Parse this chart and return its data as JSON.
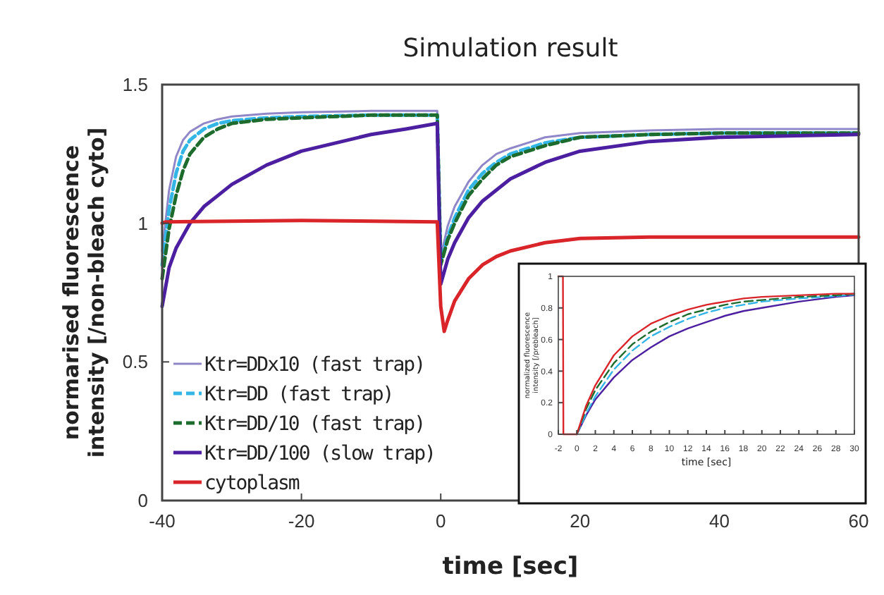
{
  "chart_data": [
    {
      "type": "line",
      "title": "Simulation result",
      "xlabel": "time [sec]",
      "ylabel": "normarised fluorescence intensity [/non-bleach cyto]",
      "xlim": [
        -40,
        60
      ],
      "ylim": [
        0,
        1.5
      ],
      "xticks": [
        -40,
        -20,
        0,
        20,
        40,
        60
      ],
      "yticks": [
        0,
        0.5,
        1,
        1.5
      ],
      "grid": false,
      "legend": "bottom left",
      "series": [
        {
          "name": "Ktr=DDx10 (fast trap)",
          "color": "#8f87c8",
          "line_style": "solid",
          "x": [
            -40,
            -39,
            -38,
            -37,
            -36,
            -34,
            -32,
            -30,
            -25,
            -20,
            -10,
            -0.5,
            0,
            1,
            2,
            4,
            6,
            8,
            10,
            15,
            20,
            30,
            40,
            60
          ],
          "values": [
            0.9,
            1.12,
            1.24,
            1.3,
            1.33,
            1.36,
            1.375,
            1.385,
            1.395,
            1.4,
            1.405,
            1.405,
            0.88,
            0.99,
            1.06,
            1.15,
            1.21,
            1.25,
            1.27,
            1.31,
            1.325,
            1.335,
            1.34,
            1.34
          ]
        },
        {
          "name": "Ktr=DD (fast trap)",
          "color": "#33b5e5",
          "line_style": "dashed",
          "x": [
            -40,
            -39,
            -38,
            -37,
            -36,
            -34,
            -32,
            -30,
            -25,
            -20,
            -10,
            -0.5,
            0,
            1,
            2,
            4,
            6,
            8,
            10,
            15,
            20,
            30,
            40,
            60
          ],
          "values": [
            0.85,
            1.05,
            1.18,
            1.26,
            1.3,
            1.34,
            1.36,
            1.37,
            1.38,
            1.385,
            1.39,
            1.39,
            0.86,
            0.95,
            1.02,
            1.12,
            1.18,
            1.22,
            1.25,
            1.29,
            1.31,
            1.32,
            1.325,
            1.325
          ]
        },
        {
          "name": "Ktr=DD/10 (fast trap)",
          "color": "#1e6b2e",
          "line_style": "dashed",
          "x": [
            -40,
            -39,
            -38,
            -37,
            -36,
            -34,
            -32,
            -30,
            -25,
            -20,
            -10,
            -0.5,
            0,
            1,
            2,
            4,
            6,
            8,
            10,
            15,
            20,
            30,
            40,
            60
          ],
          "values": [
            0.8,
            0.98,
            1.1,
            1.19,
            1.25,
            1.31,
            1.34,
            1.36,
            1.375,
            1.38,
            1.39,
            1.39,
            0.85,
            0.94,
            1.0,
            1.1,
            1.16,
            1.21,
            1.24,
            1.28,
            1.31,
            1.32,
            1.325,
            1.325
          ]
        },
        {
          "name": "Ktr=DD/100 (slow trap)",
          "color": "#4b1fa0",
          "line_style": "solid",
          "x": [
            -40,
            -39,
            -38,
            -36,
            -34,
            -32,
            -30,
            -25,
            -20,
            -15,
            -10,
            -5,
            -0.5,
            0,
            1,
            2,
            4,
            6,
            8,
            10,
            15,
            20,
            30,
            40,
            60
          ],
          "values": [
            0.7,
            0.84,
            0.91,
            1.0,
            1.06,
            1.1,
            1.14,
            1.21,
            1.26,
            1.29,
            1.32,
            1.34,
            1.36,
            0.78,
            0.87,
            0.93,
            1.02,
            1.08,
            1.12,
            1.16,
            1.22,
            1.26,
            1.295,
            1.31,
            1.32
          ]
        },
        {
          "name": "cytoplasm",
          "color": "#d9252a",
          "line_style": "solid",
          "x": [
            -40,
            -39.5,
            -20,
            -0.5,
            0,
            0.5,
            1,
            2,
            4,
            6,
            8,
            10,
            15,
            20,
            30,
            40,
            60
          ],
          "values": [
            1.0,
            1.005,
            1.01,
            1.005,
            0.7,
            0.61,
            0.65,
            0.72,
            0.8,
            0.85,
            0.88,
            0.9,
            0.93,
            0.945,
            0.95,
            0.95,
            0.95
          ]
        }
      ]
    },
    {
      "type": "line",
      "xlabel": "time [sec]",
      "ylabel": "normalized fluorescence intensity [/prebleach]",
      "xlim": [
        -2,
        30
      ],
      "ylim": [
        0,
        1
      ],
      "xticks": [
        -2,
        0,
        2,
        4,
        6,
        8,
        10,
        12,
        14,
        16,
        18,
        20,
        22,
        24,
        26,
        28,
        30
      ],
      "yticks": [
        0,
        0.2,
        0.4,
        0.6,
        0.8,
        1
      ],
      "grid": false,
      "legend": false,
      "series": [
        {
          "color": "#4b1fa0",
          "line_style": "solid",
          "x": [
            0,
            1,
            2,
            4,
            6,
            8,
            10,
            12,
            14,
            16,
            18,
            20,
            24,
            28,
            30
          ],
          "values": [
            0,
            0.12,
            0.22,
            0.36,
            0.47,
            0.55,
            0.62,
            0.67,
            0.71,
            0.75,
            0.78,
            0.8,
            0.84,
            0.87,
            0.88
          ]
        },
        {
          "color": "#33b5e5",
          "line_style": "dashed",
          "x": [
            0,
            1,
            2,
            4,
            6,
            8,
            10,
            12,
            14,
            16,
            18,
            20,
            24,
            28,
            30
          ],
          "values": [
            0,
            0.13,
            0.24,
            0.41,
            0.53,
            0.62,
            0.68,
            0.73,
            0.77,
            0.8,
            0.82,
            0.84,
            0.86,
            0.875,
            0.885
          ]
        },
        {
          "color": "#1e6b2e",
          "line_style": "dashed",
          "x": [
            0,
            1,
            2,
            4,
            6,
            8,
            10,
            12,
            14,
            16,
            18,
            20,
            24,
            28,
            30
          ],
          "values": [
            0,
            0.16,
            0.28,
            0.45,
            0.57,
            0.65,
            0.71,
            0.76,
            0.79,
            0.82,
            0.84,
            0.85,
            0.87,
            0.88,
            0.89
          ]
        },
        {
          "color": "#d9252a",
          "line_style": "solid",
          "x": [
            -2,
            -1.5,
            -1.45,
            0,
            1,
            2,
            4,
            6,
            8,
            10,
            12,
            14,
            16,
            18,
            20,
            24,
            28,
            30
          ],
          "values": [
            1,
            1,
            0,
            0,
            0.18,
            0.31,
            0.5,
            0.62,
            0.7,
            0.75,
            0.79,
            0.82,
            0.84,
            0.86,
            0.87,
            0.88,
            0.89,
            0.89
          ]
        }
      ]
    }
  ]
}
